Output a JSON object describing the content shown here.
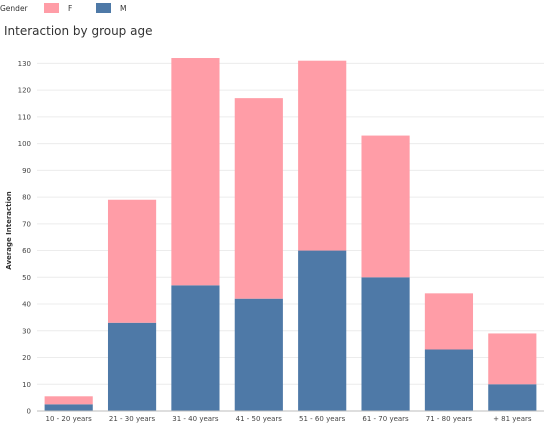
{
  "legend": {
    "title": "Gender",
    "items": [
      {
        "label": "F",
        "color": "#ff9da7"
      },
      {
        "label": "M",
        "color": "#4e79a7"
      }
    ]
  },
  "chart_data": {
    "type": "bar",
    "stacked": true,
    "title": "Interaction by group age",
    "xlabel": "",
    "ylabel": "Average Interaction",
    "categories": [
      "10 - 20 years",
      "21 - 30 years",
      "31 - 40 years",
      "41 - 50 years",
      "51 - 60 years",
      "61 - 70 years",
      "71 - 80 years",
      "+ 81 years"
    ],
    "series": [
      {
        "name": "M",
        "color": "#4e79a7",
        "values": [
          2.5,
          33,
          47,
          42,
          60,
          50,
          23,
          10
        ]
      },
      {
        "name": "F",
        "color": "#ff9da7",
        "values": [
          3,
          46,
          85,
          75,
          71,
          53,
          21,
          19
        ]
      }
    ],
    "ylim": [
      0,
      135
    ],
    "yticks": [
      0,
      10,
      20,
      30,
      40,
      50,
      60,
      70,
      80,
      90,
      100,
      110,
      120,
      130
    ],
    "grid": true,
    "legend_position": "top-left"
  }
}
